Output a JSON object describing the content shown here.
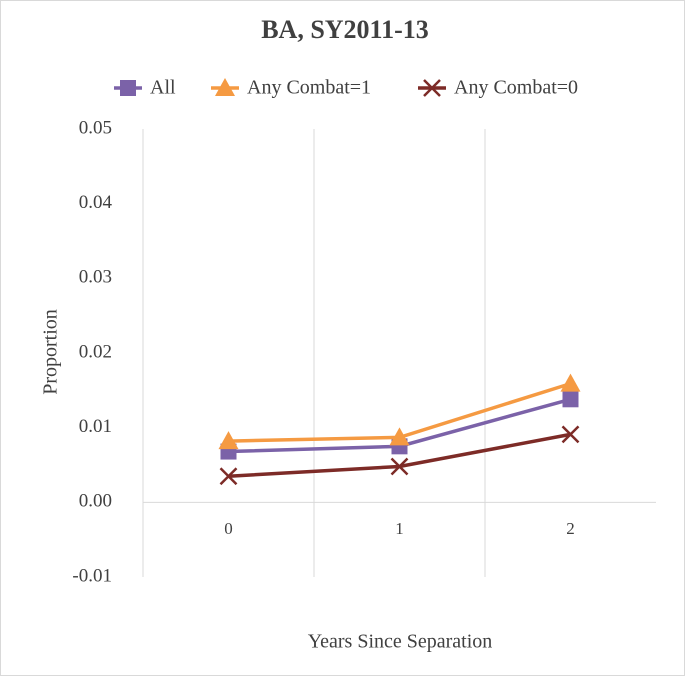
{
  "chart_data": {
    "type": "line",
    "title": "BA, SY2011-13",
    "x_label": "Years Since Separation",
    "y_label": "Proportion",
    "categories": [
      "0",
      "1",
      "2"
    ],
    "series": [
      {
        "name": "All",
        "color": "#7b62a8",
        "marker": "square",
        "values": [
          0.0068,
          0.0075,
          0.0138
        ]
      },
      {
        "name": "Any Combat=1",
        "color": "#f59a42",
        "marker": "triangle",
        "values": [
          0.0082,
          0.0087,
          0.0159
        ]
      },
      {
        "name": "Any Combat=0",
        "color": "#7d2b27",
        "marker": "x",
        "values": [
          0.0035,
          0.0048,
          0.0091
        ]
      }
    ],
    "ylim": [
      -0.01,
      0.05
    ],
    "yticks": [
      -0.01,
      {
        "value": 0,
        "label": "0.00"
      },
      0.01,
      0.02,
      0.03,
      0.04,
      0.05
    ],
    "legend": "top"
  }
}
